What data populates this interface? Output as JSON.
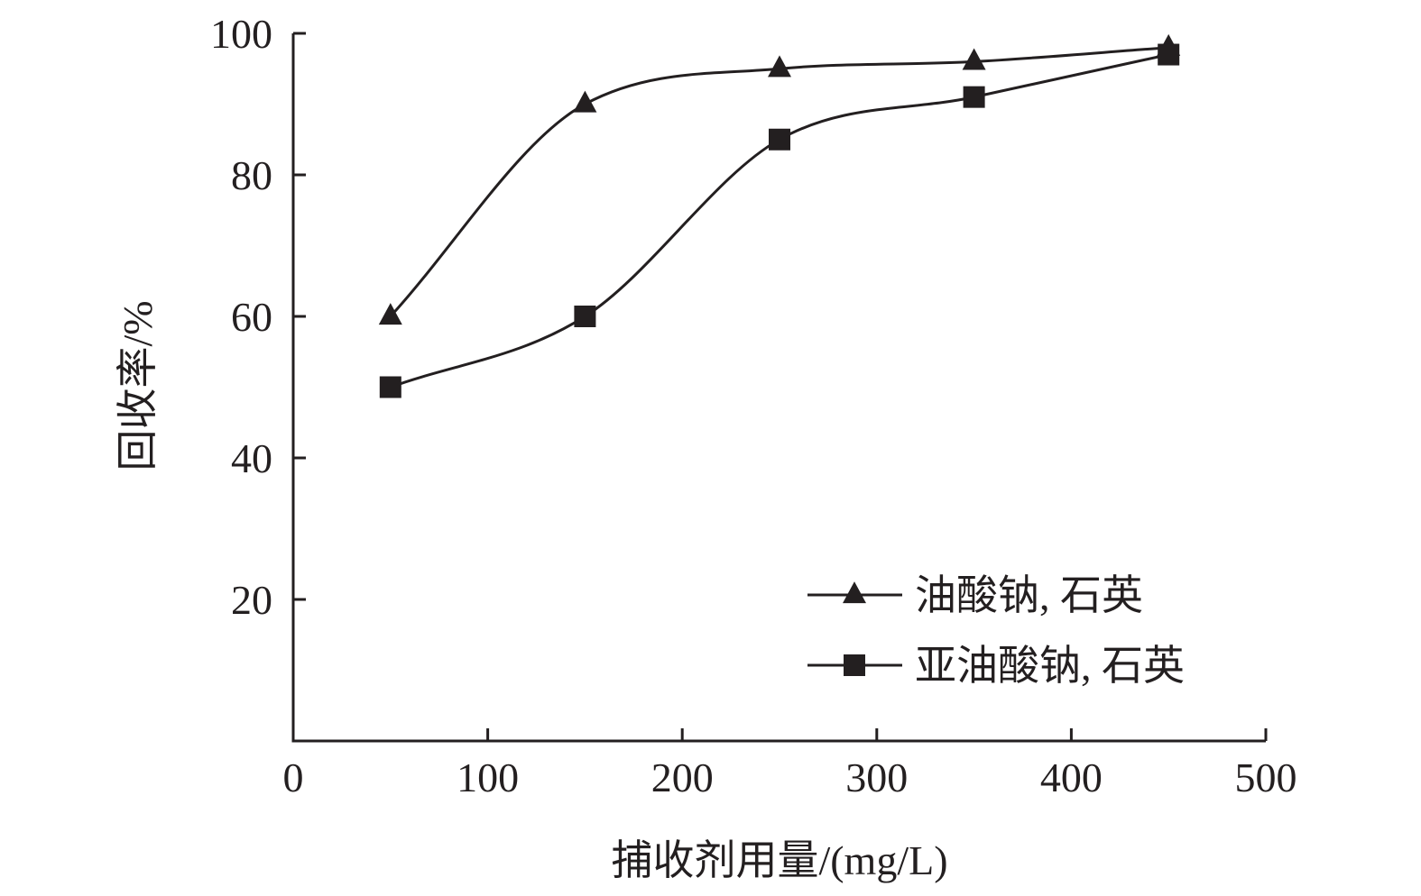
{
  "chart_data": {
    "type": "line",
    "title": "",
    "xlabel": "捕收剂用量/(mg/L)",
    "ylabel": "回收率/%",
    "xlim": [
      0,
      500
    ],
    "ylim": [
      0,
      100
    ],
    "xticks": [
      0,
      100,
      200,
      300,
      400,
      500
    ],
    "yticks": [
      20,
      40,
      60,
      80,
      100
    ],
    "x": [
      50,
      150,
      250,
      350,
      450
    ],
    "series": [
      {
        "name": "油酸钠, 石英",
        "marker": "triangle",
        "values": [
          60,
          90,
          95,
          96,
          98
        ]
      },
      {
        "name": "亚油酸钠, 石英",
        "marker": "square",
        "values": [
          50,
          60,
          85,
          91,
          97
        ]
      }
    ],
    "grid": false,
    "legend_position": "bottom-right",
    "line_color": "#231f20"
  }
}
